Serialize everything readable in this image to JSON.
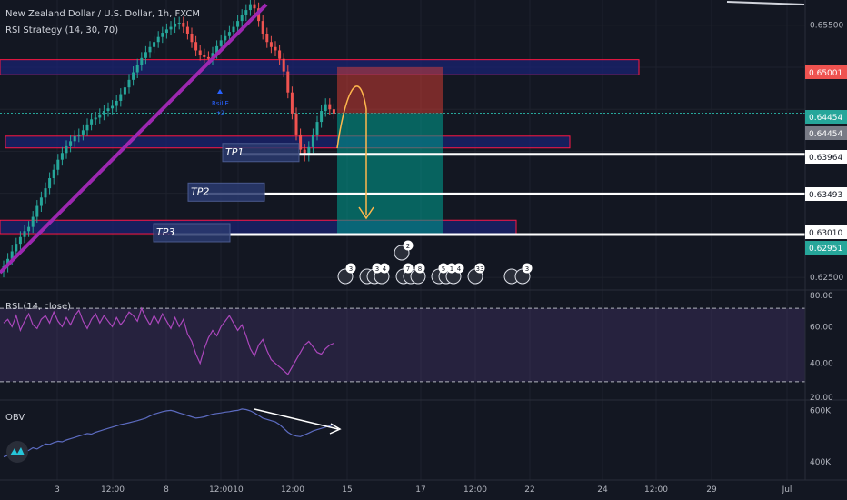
{
  "main_title": "New Zealand Dollar / U.S. Dollar, 1h, FXCM",
  "strategy_label": "RSI Strategy (14, 30, 70)",
  "rsi_label": "RSI (14, close)",
  "obv_label": "OBV",
  "signal_label": "RsiLE",
  "signal_sub": "+2",
  "tp_labels": [
    "TP1",
    "TP2",
    "TP3"
  ],
  "colors": {
    "background": "#131722",
    "up": "#26a69a",
    "down": "#ef5350",
    "trendline": "#9c27b0",
    "zone_border": "#ff1744",
    "zone_fill": "#1a237e",
    "rsi_band": "#7e57c2",
    "rsi_line": "#ab47bc",
    "obv_line": "#5c6bc0",
    "stop_fill": "#f44336",
    "target_fill": "#009688",
    "arrow": "#ffb74d"
  },
  "chart_data": [
    {
      "type": "candlestick",
      "title": "New Zealand Dollar / U.S. Dollar, 1h, FXCM",
      "ylim": [
        0.6235,
        0.658
      ],
      "y_ticks": [
        "0.65500",
        "0.62500"
      ],
      "price_labels": [
        {
          "text": "0.65001",
          "value": 0.65001,
          "color": "#ef5350"
        },
        {
          "text": "0.64454",
          "value": 0.64454,
          "color": "#26a69a"
        },
        {
          "text": "0.64454",
          "value": 0.64454,
          "color": "#787b86"
        },
        {
          "text": "0.63964",
          "value": 0.63964,
          "color": "#ffffff"
        },
        {
          "text": "0.63493",
          "value": 0.63493,
          "color": "#ffffff"
        },
        {
          "text": "0.63010",
          "value": 0.6301,
          "color": "#ffffff"
        },
        {
          "text": "0.62951",
          "value": 0.62951,
          "color": "#26a69a"
        }
      ],
      "take_profit_levels": [
        0.63964,
        0.63493,
        0.6301
      ],
      "position": {
        "entry": 0.64454,
        "stop": 0.65001,
        "target": 0.6301
      },
      "closes": [
        0.6263,
        0.6272,
        0.6281,
        0.629,
        0.6298,
        0.6305,
        0.631,
        0.6322,
        0.6335,
        0.6345,
        0.6356,
        0.6368,
        0.6378,
        0.639,
        0.6398,
        0.6406,
        0.6412,
        0.6418,
        0.642,
        0.6425,
        0.6432,
        0.6438,
        0.644,
        0.6444,
        0.6448,
        0.6451,
        0.6454,
        0.646,
        0.6468,
        0.6476,
        0.6485,
        0.6494,
        0.6503,
        0.6511,
        0.6518,
        0.6524,
        0.653,
        0.6536,
        0.6541,
        0.6545,
        0.6548,
        0.6552,
        0.6553,
        0.6548,
        0.654,
        0.653,
        0.652,
        0.6515,
        0.6512,
        0.651,
        0.6517,
        0.6525,
        0.6532,
        0.6537,
        0.6542,
        0.6548,
        0.6555,
        0.6562,
        0.6568,
        0.6575,
        0.657,
        0.6555,
        0.654,
        0.653,
        0.6524,
        0.652,
        0.651,
        0.6495,
        0.647,
        0.6445,
        0.642,
        0.6402,
        0.6395,
        0.6405,
        0.642,
        0.6435,
        0.6448,
        0.6456,
        0.645,
        0.6445
      ],
      "rsi": {
        "ylim": [
          20,
          80
        ],
        "upper": 70,
        "lower": 30,
        "y_ticks": [
          "80.00",
          "60.00",
          "40.00",
          "20.00"
        ],
        "values": [
          62,
          64,
          60,
          66,
          58,
          63,
          67,
          61,
          59,
          64,
          66,
          62,
          68,
          63,
          60,
          65,
          61,
          66,
          69,
          63,
          59,
          64,
          67,
          62,
          66,
          63,
          60,
          65,
          61,
          64,
          68,
          66,
          63,
          70,
          65,
          61,
          66,
          62,
          67,
          63,
          59,
          65,
          60,
          64,
          56,
          52,
          45,
          40,
          48,
          54,
          58,
          55,
          60,
          63,
          66,
          62,
          58,
          61,
          55,
          48,
          44,
          50,
          53,
          47,
          42,
          40,
          38,
          36,
          34,
          38,
          42,
          46,
          50,
          52,
          49,
          46,
          45,
          48,
          50,
          51
        ]
      },
      "obv": {
        "ylim": [
          330,
          640
        ],
        "y_ticks": [
          "600K",
          "400K"
        ],
        "values": [
          420,
          425,
          418,
          430,
          440,
          438,
          445,
          455,
          450,
          460,
          470,
          468,
          475,
          480,
          478,
          485,
          490,
          495,
          500,
          505,
          510,
          508,
          515,
          520,
          525,
          530,
          535,
          540,
          545,
          548,
          552,
          556,
          560,
          565,
          570,
          578,
          585,
          590,
          595,
          598,
          600,
          596,
          590,
          585,
          580,
          575,
          570,
          572,
          575,
          580,
          585,
          588,
          590,
          593,
          595,
          598,
          600,
          605,
          603,
          598,
          590,
          580,
          570,
          565,
          560,
          555,
          545,
          530,
          515,
          505,
          500,
          498,
          505,
          512,
          520,
          525,
          530,
          535,
          540,
          545
        ]
      },
      "x_ticks": [
        "3",
        "12:00",
        "8",
        "12:00",
        "10",
        "12:00",
        "15",
        "17",
        "12:00",
        "22",
        "24",
        "12:00",
        "29",
        "Jul"
      ],
      "event_badges": [
        "3",
        "3",
        "4",
        "7",
        "8",
        "5",
        "1",
        "4",
        "33",
        "3",
        "2"
      ]
    }
  ]
}
